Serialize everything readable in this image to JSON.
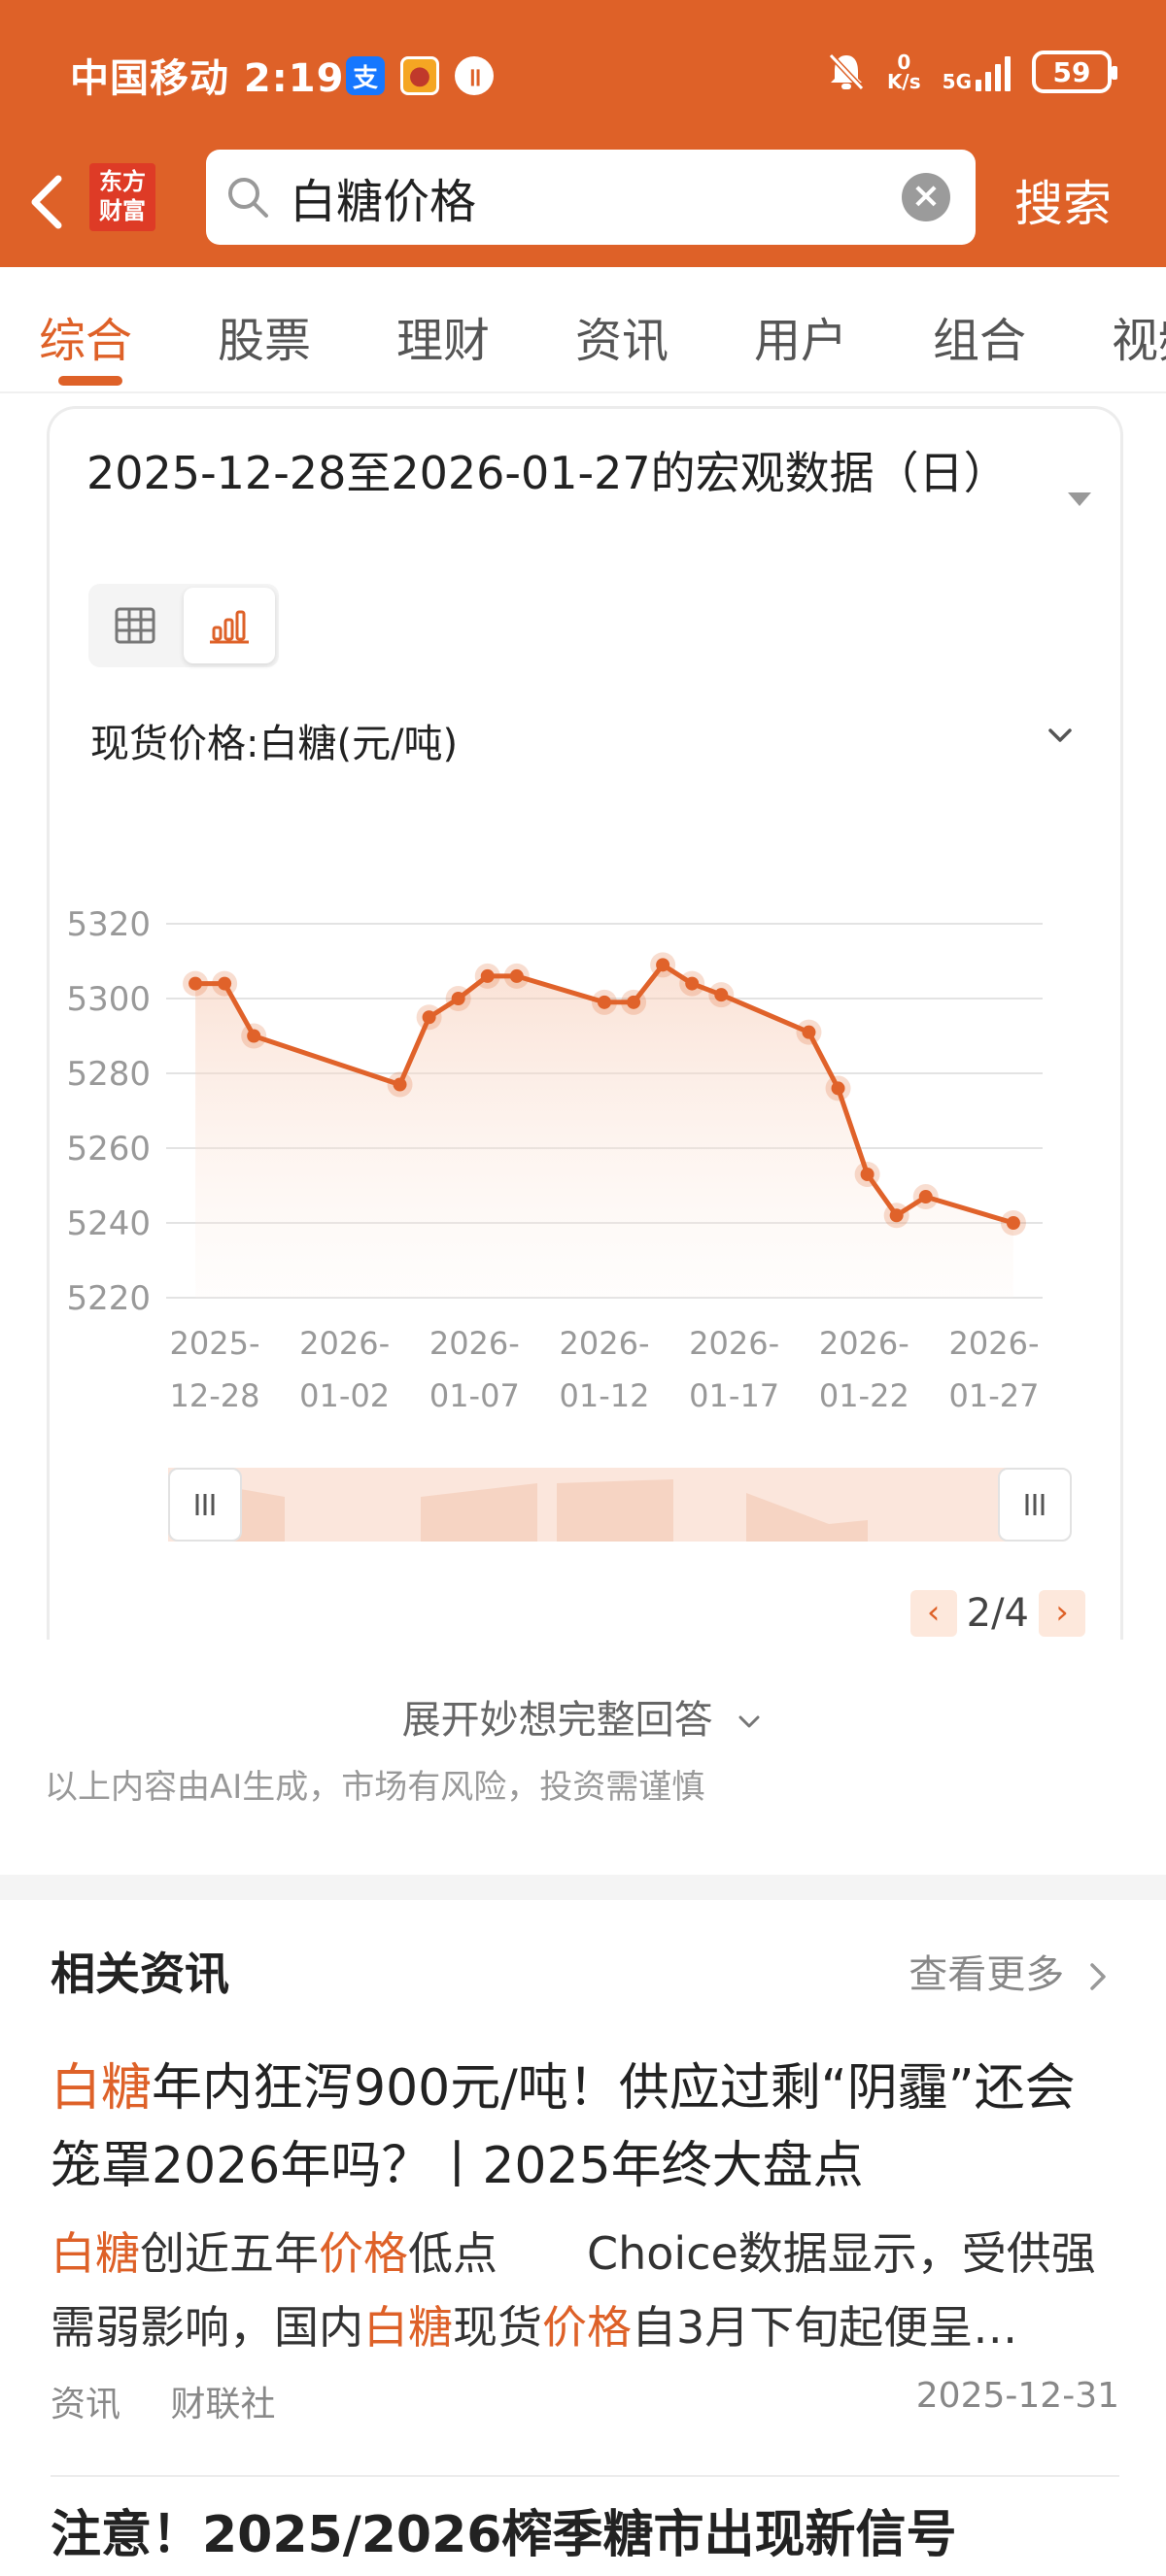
{
  "status_bar": {
    "carrier_time": "中国移动 2:19",
    "net_speed_value": "0",
    "net_speed_unit": "K/s",
    "network": "5G",
    "battery": "59"
  },
  "nav": {
    "logo_line1": "东方",
    "logo_line2": "财富",
    "search_value": "白糖价格",
    "search_button": "搜索"
  },
  "tabs": [
    "综合",
    "股票",
    "理财",
    "资讯",
    "用户",
    "组合",
    "视频"
  ],
  "card": {
    "title": "2025-12-28至2026-01-27的宏观数据（日）",
    "series_selector": "现货价格:白糖(元/吨)",
    "pager": "2/4"
  },
  "chart_data": {
    "type": "area",
    "x": [
      "2025-12-29",
      "2025-12-30",
      "2025-12-31",
      "2026-01-05",
      "2026-01-06",
      "2026-01-07",
      "2026-01-08",
      "2026-01-09",
      "2026-01-12",
      "2026-01-13",
      "2026-01-14",
      "2026-01-15",
      "2026-01-16",
      "2026-01-19",
      "2026-01-20",
      "2026-01-21",
      "2026-01-22",
      "2026-01-23",
      "2026-01-26"
    ],
    "values": [
      5304,
      5304,
      5290,
      5277,
      5295,
      5300,
      5306,
      5306,
      5299,
      5299,
      5309,
      5304,
      5301,
      5291,
      5276,
      5253,
      5242,
      5247,
      5240
    ],
    "xticks": [
      [
        "2025-",
        "12-28"
      ],
      [
        "2026-",
        "01-02"
      ],
      [
        "2026-",
        "01-07"
      ],
      [
        "2026-",
        "01-12"
      ],
      [
        "2026-",
        "01-17"
      ],
      [
        "2026-",
        "01-22"
      ],
      [
        "2026-",
        "01-27"
      ]
    ],
    "xlim": [
      "2025-12-28",
      "2026-01-27"
    ],
    "yticks": [
      "5320",
      "5300",
      "5280",
      "5260",
      "5240",
      "5220"
    ],
    "ylim": [
      5220,
      5320
    ],
    "color": "#e0622a",
    "grid": true
  },
  "expand_label": "展开妙想完整回答",
  "disclaimer": "以上内容由AI生成，市场有风险，投资需谨慎",
  "related_news": {
    "header": "相关资讯",
    "more": "查看更多",
    "items": [
      {
        "title_parts": [
          {
            "text": "白糖",
            "hl": true
          },
          {
            "text": "年内狂泻900元/吨！供应过剩“阴霾”还会笼罩2026年吗？丨2025年终大盘点",
            "hl": false
          }
        ],
        "summary_parts": [
          {
            "text": "白糖",
            "hl": true
          },
          {
            "text": "创近五年",
            "hl": false
          },
          {
            "text": "价格",
            "hl": true
          },
          {
            "text": "低点　　Choice数据显示，受供强需弱影响，国内",
            "hl": false
          },
          {
            "text": "白糖",
            "hl": true
          },
          {
            "text": "现货",
            "hl": false
          },
          {
            "text": "价格",
            "hl": true
          },
          {
            "text": "自3月下旬起便呈…",
            "hl": false
          }
        ],
        "type": "资讯",
        "source": "财联社",
        "date": "2025-12-31"
      },
      {
        "title_parts": [
          {
            "text": "注意！2025/2026榨季糖市出现新信号",
            "hl": false
          }
        ]
      }
    ]
  }
}
